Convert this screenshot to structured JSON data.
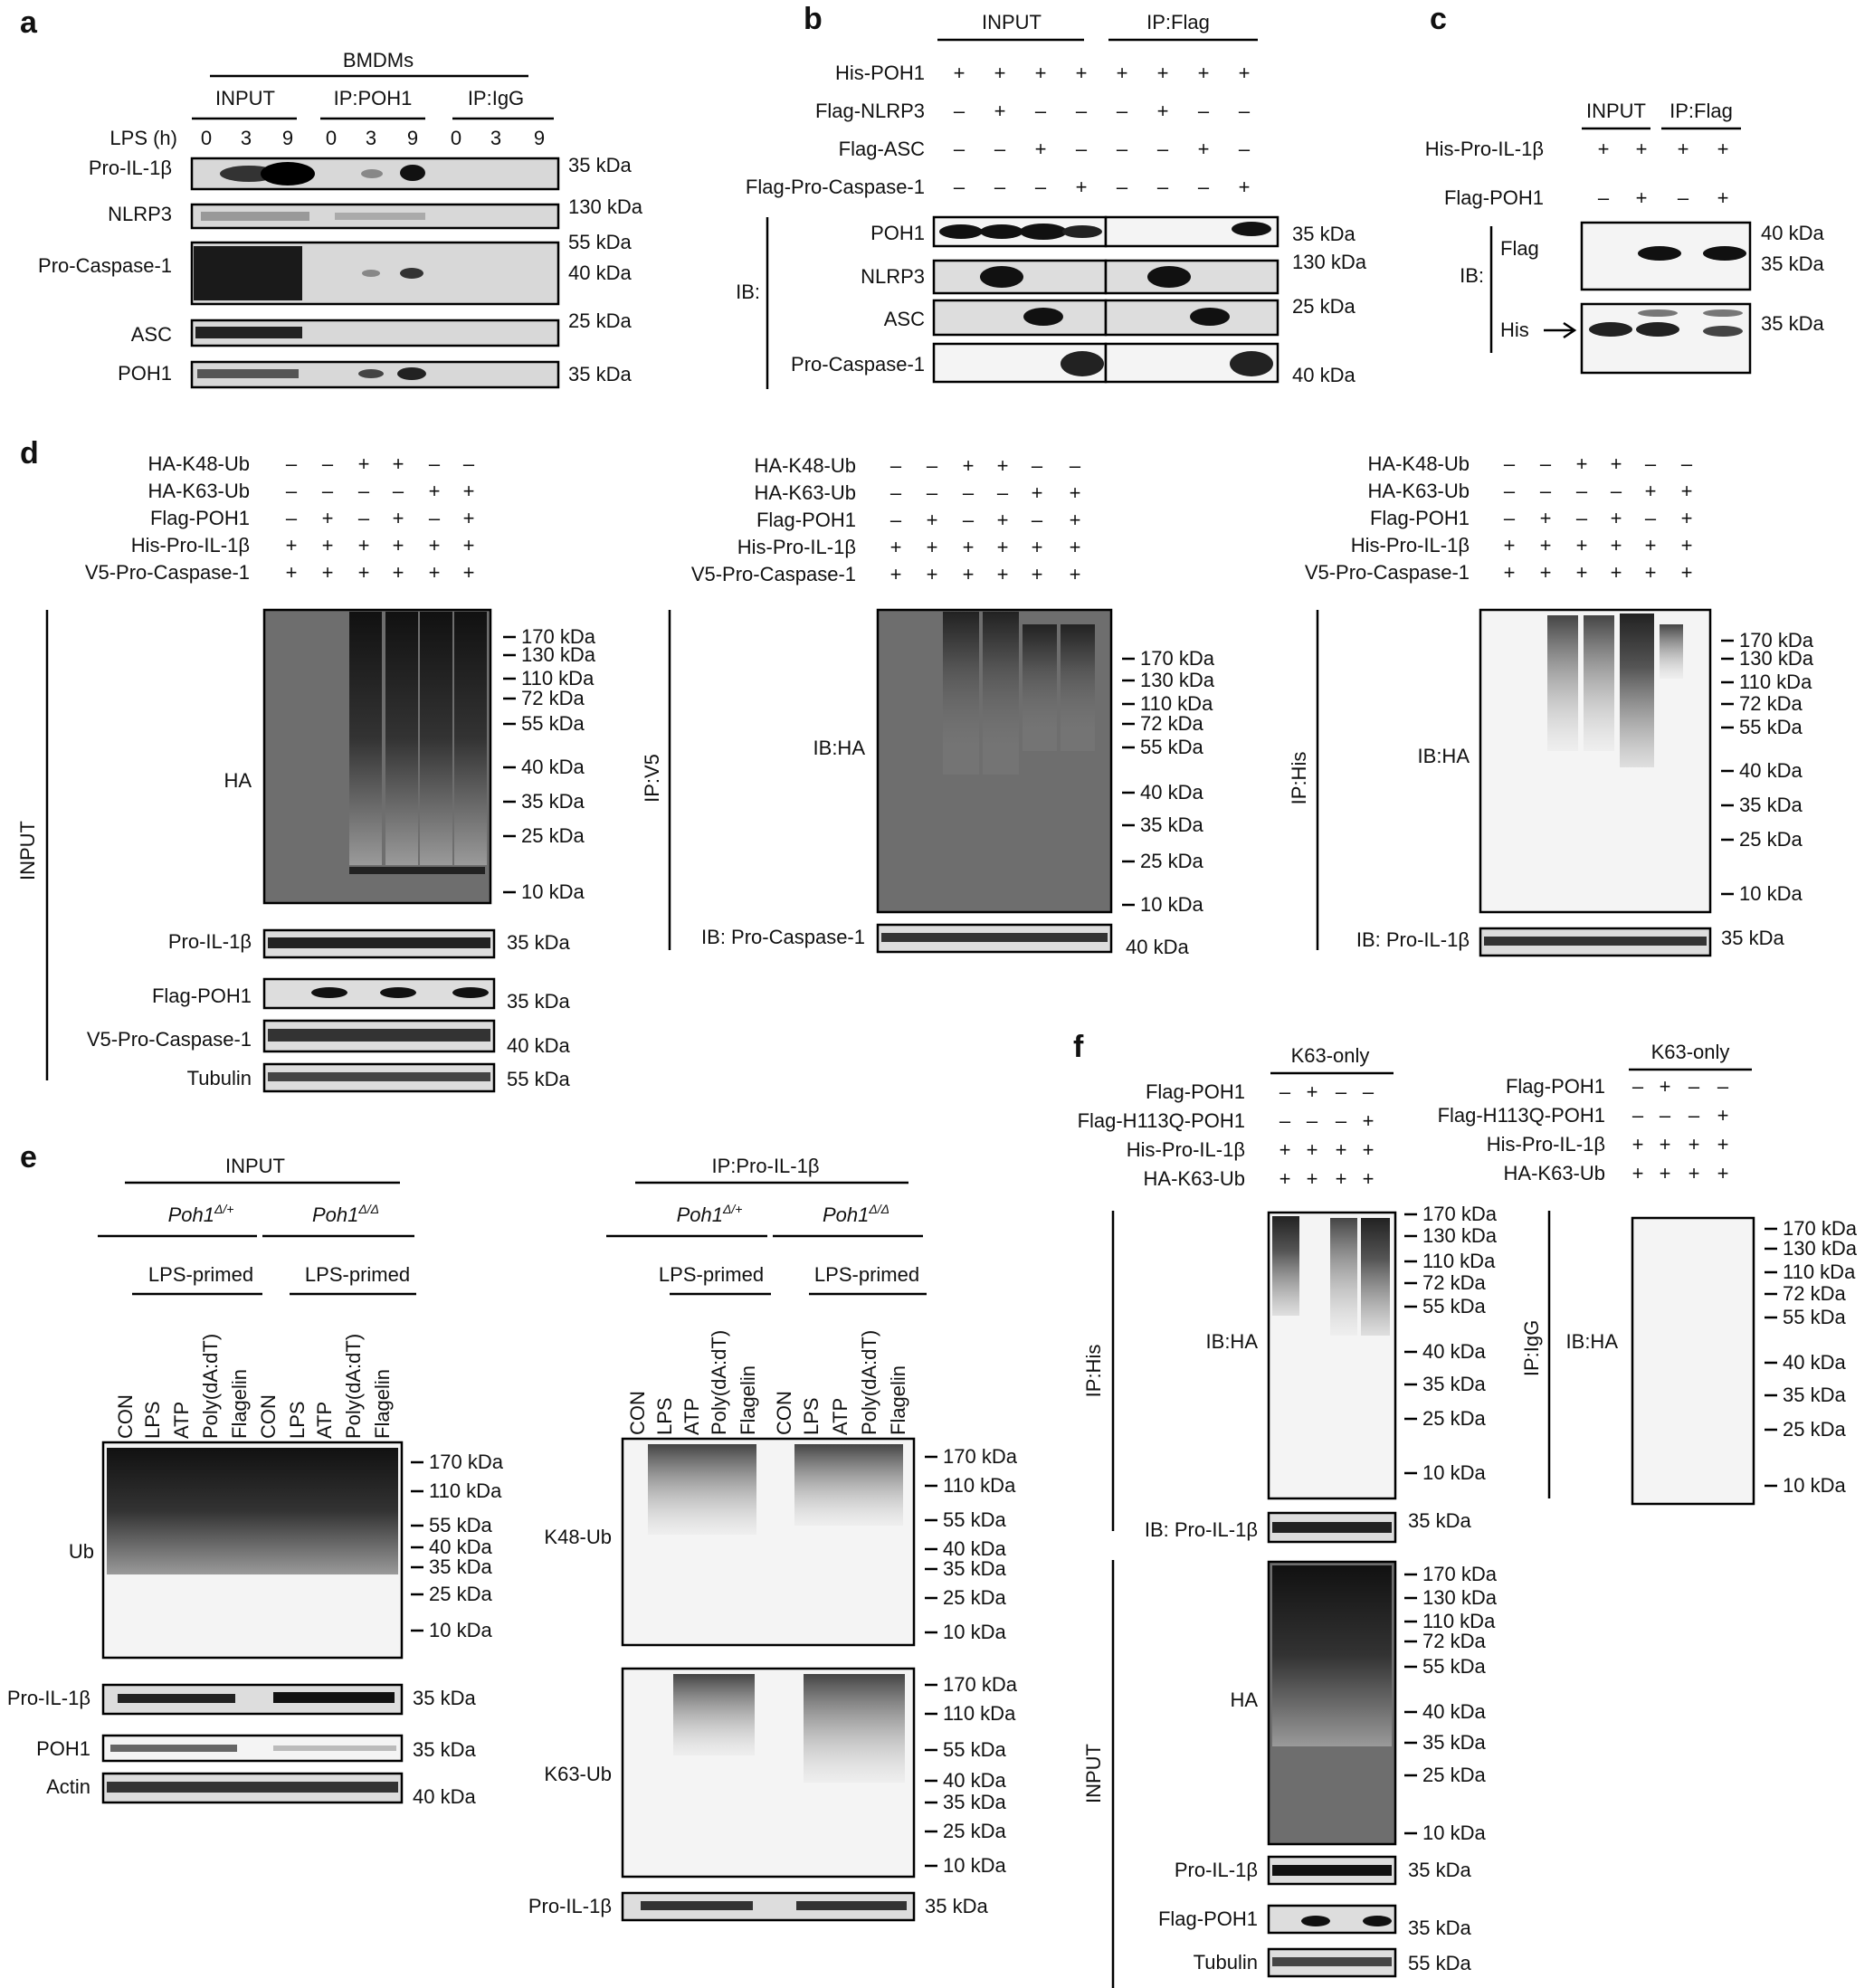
{
  "panels": [
    "a",
    "b",
    "c",
    "d",
    "e",
    "f"
  ],
  "a": {
    "header": "BMDMs",
    "groups": [
      "INPUT",
      "IP:POH1",
      "IP:IgG"
    ],
    "row_label": "LPS (h)",
    "times": [
      "0",
      "3",
      "9"
    ],
    "blots": [
      {
        "label": "Pro-IL-1β",
        "mw": "35 kDa"
      },
      {
        "label": "NLRP3",
        "mw": "130 kDa"
      },
      {
        "label": "Pro-Caspase-1",
        "mw1": "55 kDa",
        "mw2": "40 kDa"
      },
      {
        "label": "ASC",
        "mw": "25 kDa"
      },
      {
        "label": "POH1",
        "mw": "35 kDa"
      }
    ]
  },
  "b": {
    "groups": [
      "INPUT",
      "IP:Flag"
    ],
    "rows": [
      {
        "label": "His-POH1",
        "signs": [
          "+",
          "+",
          "+",
          "+",
          "+",
          "+",
          "+",
          "+"
        ]
      },
      {
        "label": "Flag-NLRP3",
        "signs": [
          "–",
          "+",
          "–",
          "–",
          "–",
          "+",
          "–",
          "–"
        ]
      },
      {
        "label": "Flag-ASC",
        "signs": [
          "–",
          "–",
          "+",
          "–",
          "–",
          "–",
          "+",
          "–"
        ]
      },
      {
        "label": "Flag-Pro-Caspase-1",
        "signs": [
          "–",
          "–",
          "–",
          "+",
          "–",
          "–",
          "–",
          "+"
        ]
      }
    ],
    "ib": "IB:",
    "blots": [
      {
        "label": "POH1",
        "mw": "35 kDa"
      },
      {
        "label": "NLRP3",
        "mw": "130 kDa"
      },
      {
        "label": "ASC",
        "mw": "25 kDa"
      },
      {
        "label": "Pro-Caspase-1",
        "mw": "40 kDa"
      }
    ]
  },
  "c": {
    "groups": [
      "INPUT",
      "IP:Flag"
    ],
    "rows": [
      {
        "label": "His-Pro-IL-1β",
        "signs": [
          "+",
          "+",
          "+",
          "+"
        ]
      },
      {
        "label": "Flag-POH1",
        "signs": [
          "–",
          "+",
          "–",
          "+"
        ]
      }
    ],
    "ib": "IB:",
    "blots": [
      {
        "label": "Flag",
        "mw1": "40 kDa",
        "mw2": "35 kDa"
      },
      {
        "label": "His",
        "mw": "35 kDa"
      }
    ]
  },
  "d": {
    "rows": [
      {
        "label": "HA-K48-Ub",
        "signs": [
          "–",
          "–",
          "+",
          "+",
          "–",
          "–"
        ]
      },
      {
        "label": "HA-K63-Ub",
        "signs": [
          "–",
          "–",
          "–",
          "–",
          "+",
          "+"
        ]
      },
      {
        "label": "Flag-POH1",
        "signs": [
          "–",
          "+",
          "–",
          "+",
          "–",
          "+"
        ]
      },
      {
        "label": "His-Pro-IL-1β",
        "signs": [
          "+",
          "+",
          "+",
          "+",
          "+",
          "+"
        ]
      },
      {
        "label": "V5-Pro-Caspase-1",
        "signs": [
          "+",
          "+",
          "+",
          "+",
          "+",
          "+"
        ]
      }
    ],
    "ladder": [
      "170 kDa",
      "130 kDa",
      "110 kDa",
      "72 kDa",
      "55 kDa",
      "40 kDa",
      "35 kDa",
      "25 kDa",
      "10 kDa"
    ],
    "input_label": "INPUT",
    "input_blots": [
      {
        "label": "HA"
      },
      {
        "label": "Pro-IL-1β",
        "mw": "35 kDa"
      },
      {
        "label": "Flag-POH1",
        "mw": "35 kDa"
      },
      {
        "label": "V5-Pro-Caspase-1",
        "mw": "40 kDa"
      },
      {
        "label": "Tubulin",
        "mw": "55 kDa"
      }
    ],
    "ipv5": {
      "side": "IP:V5",
      "ib": "IB:HA",
      "bottom": "IB: Pro-Caspase-1",
      "mw": "40 kDa"
    },
    "iphis": {
      "side": "IP:His",
      "ib": "IB:HA",
      "bottom": "IB: Pro-IL-1β",
      "mw": "35 kDa"
    }
  },
  "e": {
    "input": "INPUT",
    "ip": "IP:Pro-IL-1β",
    "geno1": "Poh1",
    "geno1_sup": "Δ/+",
    "geno2": "Poh1",
    "geno2_sup": "Δ/Δ",
    "primed": "LPS-primed",
    "lanes": [
      "CON",
      "LPS",
      "ATP",
      "Poly(dA:dT)",
      "Flagelin"
    ],
    "ladder": [
      "170 kDa",
      "110 kDa",
      "55 kDa",
      "40 kDa",
      "35 kDa",
      "25 kDa",
      "10 kDa"
    ],
    "left_blots": [
      {
        "label": "Ub"
      },
      {
        "label": "Pro-IL-1β",
        "mw": "35 kDa"
      },
      {
        "label": "POH1",
        "mw": "35 kDa"
      },
      {
        "label": "Actin",
        "mw": "40 kDa"
      }
    ],
    "right_blots": [
      {
        "label": "K48-Ub"
      },
      {
        "label": "K63-Ub"
      },
      {
        "label": "Pro-IL-1β",
        "mw": "35 kDa"
      }
    ]
  },
  "f": {
    "condition": "K63-only",
    "rows": [
      {
        "label": "Flag-POH1",
        "signs": [
          "–",
          "+",
          "–",
          "–"
        ]
      },
      {
        "label": "Flag-H113Q-POH1",
        "signs": [
          "–",
          "–",
          "–",
          "+"
        ]
      },
      {
        "label": "His-Pro-IL-1β",
        "signs": [
          "+",
          "+",
          "+",
          "+"
        ]
      },
      {
        "label": "HA-K63-Ub",
        "signs": [
          "+",
          "+",
          "+",
          "+"
        ]
      }
    ],
    "ladder": [
      "170 kDa",
      "130 kDa",
      "110 kDa",
      "72 kDa",
      "55 kDa",
      "40 kDa",
      "35 kDa",
      "25 kDa",
      "10 kDa"
    ],
    "iphis": {
      "side": "IP:His",
      "ib": "IB:HA",
      "bottom": "IB: Pro-IL-1β",
      "mw": "35 kDa"
    },
    "ipigg": {
      "side": "IP:IgG",
      "ib": "IB:HA"
    },
    "input_label": "INPUT",
    "input_blots": [
      {
        "label": "HA"
      },
      {
        "label": "Pro-IL-1β",
        "mw": "35 kDa"
      },
      {
        "label": "Flag-POH1",
        "mw": "35 kDa"
      },
      {
        "label": "Tubulin",
        "mw": "55 kDa"
      }
    ]
  }
}
